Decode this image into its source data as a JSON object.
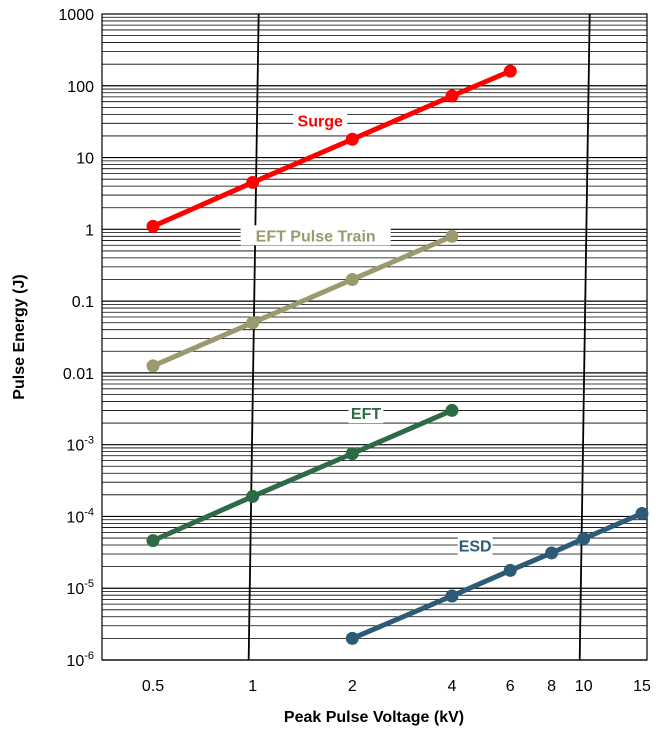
{
  "chart_data": {
    "type": "line",
    "xlabel": "Peak Pulse Voltage (kV)",
    "ylabel": "Pulse Energy (J)",
    "x_scale": "log",
    "y_scale": "log",
    "xlim": [
      0.5,
      15
    ],
    "ylim": [
      1e-06,
      1000
    ],
    "grid": true,
    "x_ticks": [
      {
        "value": 0.5,
        "label": "0.5"
      },
      {
        "value": 1,
        "label": "1"
      },
      {
        "value": 2,
        "label": "2"
      },
      {
        "value": 4,
        "label": "4"
      },
      {
        "value": 6,
        "label": "6"
      },
      {
        "value": 8,
        "label": "8"
      },
      {
        "value": 10,
        "label": "10"
      },
      {
        "value": 15,
        "label": "15"
      }
    ],
    "y_ticks": [
      {
        "value": 1e-06,
        "label": "10",
        "sup": "-6"
      },
      {
        "value": 1e-05,
        "label": "10",
        "sup": "-5"
      },
      {
        "value": 0.0001,
        "label": "10",
        "sup": "-4"
      },
      {
        "value": 0.001,
        "label": "10",
        "sup": "-3"
      },
      {
        "value": 0.01,
        "label": "0.01",
        "sup": ""
      },
      {
        "value": 0.1,
        "label": "0.1",
        "sup": ""
      },
      {
        "value": 1,
        "label": "1",
        "sup": ""
      },
      {
        "value": 10,
        "label": "10",
        "sup": ""
      },
      {
        "value": 100,
        "label": "100",
        "sup": ""
      },
      {
        "value": 1000,
        "label": "1000",
        "sup": ""
      }
    ],
    "series": [
      {
        "name": "Surge",
        "color": "#ff0000",
        "points": [
          [
            0.5,
            1.1
          ],
          [
            1,
            4.5
          ],
          [
            2,
            18
          ],
          [
            4,
            72
          ],
          [
            6,
            160
          ]
        ],
        "label_at": [
          1.6,
          30
        ]
      },
      {
        "name": "EFT Pulse Train",
        "color": "#9a9a6e",
        "points": [
          [
            0.5,
            0.0125
          ],
          [
            1,
            0.05
          ],
          [
            2,
            0.2
          ],
          [
            4,
            0.8
          ]
        ],
        "label_at": [
          1.55,
          0.75
        ]
      },
      {
        "name": "EFT",
        "color": "#2d6a46",
        "points": [
          [
            0.5,
            4.6e-05
          ],
          [
            1,
            0.00019
          ],
          [
            2,
            0.00075
          ],
          [
            4,
            0.003
          ]
        ],
        "label_at": [
          2.2,
          0.0025
        ]
      },
      {
        "name": "ESD",
        "color": "#2c5a77",
        "points": [
          [
            2,
            2e-06
          ],
          [
            4,
            7.8e-06
          ],
          [
            6,
            1.77e-05
          ],
          [
            8,
            3.1e-05
          ],
          [
            10,
            4.9e-05
          ],
          [
            15,
            0.00011
          ]
        ],
        "label_at": [
          4.7,
          3.6e-05
        ]
      }
    ]
  }
}
